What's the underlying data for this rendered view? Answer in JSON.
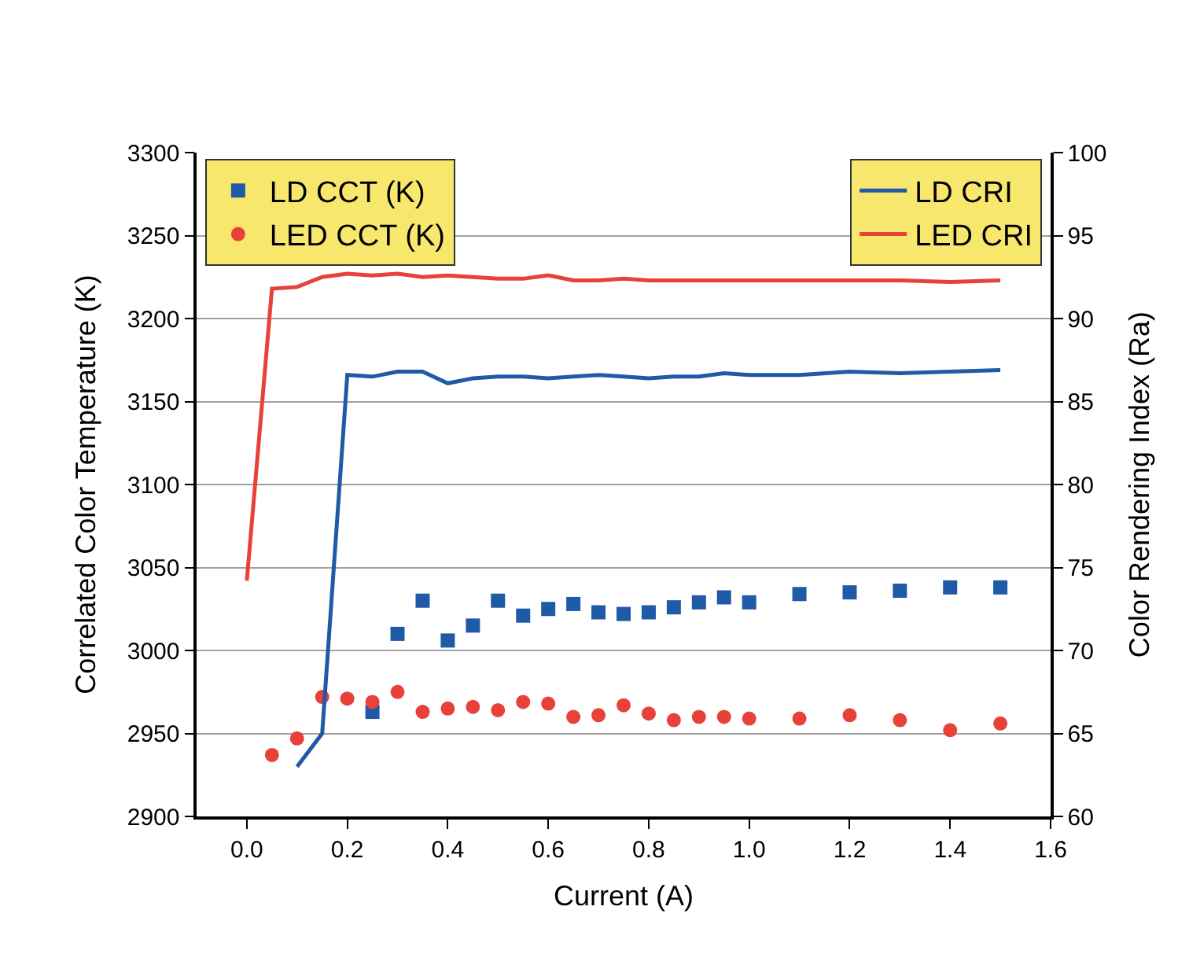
{
  "chart_data": {
    "type": "scatter",
    "xlabel": "Current (A)",
    "ylabel": "Correlated Color Temperature (K)",
    "y2label": "Color Rendering Index (Ra)",
    "xlim": [
      -0.1,
      1.6
    ],
    "xticks": [
      {
        "value": 0,
        "label": "0.0"
      },
      0.2,
      0.4,
      0.6,
      0.8,
      {
        "value": 1,
        "label": "1.0"
      },
      1.2,
      1.4,
      1.6
    ],
    "ylim": [
      2900,
      3300
    ],
    "yticks": [
      2900,
      2950,
      3000,
      3050,
      3100,
      3150,
      3200,
      3250,
      3300
    ],
    "y2lim": [
      60,
      100
    ],
    "y2ticks": [
      60,
      65,
      70,
      75,
      80,
      85,
      90,
      95,
      100
    ],
    "grid": "y",
    "legend": "top left",
    "series": [
      {
        "name": "LD CCT (K)",
        "marker": "square",
        "color": "#1f5aa6",
        "x": [
          0.25,
          0.3,
          0.35,
          0.4,
          0.45,
          0.5,
          0.55,
          0.6,
          0.65,
          0.7,
          0.75,
          0.8,
          0.85,
          0.9,
          0.95,
          1.0,
          1.1,
          1.2,
          1.3,
          1.4,
          1.5
        ],
        "values": [
          2963,
          3010,
          3030,
          3006,
          3015,
          3030,
          3021,
          3025,
          3028,
          3023,
          3022,
          3023,
          3026,
          3029,
          3032,
          3029,
          3034,
          3035,
          3036,
          3038,
          3038
        ]
      },
      {
        "name": "LED CCT (K)",
        "marker": "circle",
        "color": "#e8413a",
        "x": [
          0.05,
          0.1,
          0.15,
          0.2,
          0.25,
          0.3,
          0.35,
          0.4,
          0.45,
          0.5,
          0.55,
          0.6,
          0.65,
          0.7,
          0.75,
          0.8,
          0.85,
          0.9,
          0.95,
          1.0,
          1.1,
          1.2,
          1.3,
          1.4,
          1.5
        ],
        "values": [
          2937,
          2947,
          2972,
          2971,
          2969,
          2975,
          2963,
          2965,
          2966,
          2964,
          2969,
          2968,
          2960,
          2961,
          2967,
          2962,
          2958,
          2960,
          2960,
          2959,
          2959,
          2961,
          2958,
          2952,
          2956
        ]
      },
      {
        "name": "LD CRI",
        "type": "line",
        "axis": "y2",
        "color": "#1f5aa6",
        "x": [
          0.1,
          0.15,
          0.2,
          0.25,
          0.3,
          0.35,
          0.4,
          0.45,
          0.5,
          0.55,
          0.6,
          0.65,
          0.7,
          0.75,
          0.8,
          0.85,
          0.9,
          0.95,
          1.0,
          1.1,
          1.2,
          1.3,
          1.4,
          1.5
        ],
        "values": [
          63.0,
          65.0,
          86.6,
          86.5,
          86.8,
          86.8,
          86.1,
          86.4,
          86.5,
          86.5,
          86.4,
          86.5,
          86.6,
          86.5,
          86.4,
          86.5,
          86.5,
          86.7,
          86.6,
          86.6,
          86.8,
          86.7,
          86.8,
          86.9
        ]
      },
      {
        "name": "LED CRI",
        "type": "line",
        "axis": "y2",
        "color": "#e8413a",
        "x": [
          0.0,
          0.05,
          0.1,
          0.15,
          0.2,
          0.25,
          0.3,
          0.35,
          0.4,
          0.45,
          0.5,
          0.55,
          0.6,
          0.65,
          0.7,
          0.75,
          0.8,
          0.85,
          0.9,
          0.95,
          1.0,
          1.1,
          1.2,
          1.3,
          1.4,
          1.5
        ],
        "values": [
          74.2,
          91.8,
          91.9,
          92.5,
          92.7,
          92.6,
          92.7,
          92.5,
          92.6,
          92.5,
          92.4,
          92.4,
          92.6,
          92.3,
          92.3,
          92.4,
          92.3,
          92.3,
          92.3,
          92.3,
          92.3,
          92.3,
          92.3,
          92.3,
          92.2,
          92.3
        ]
      }
    ]
  }
}
